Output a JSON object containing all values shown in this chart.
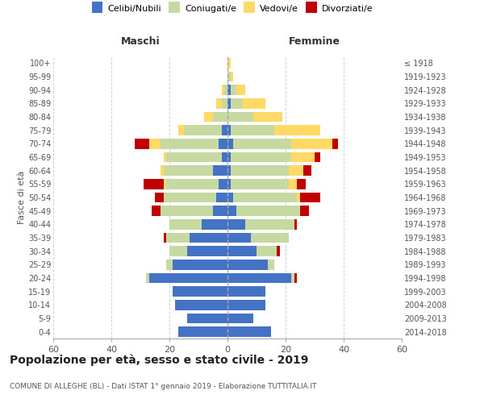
{
  "age_groups": [
    "0-4",
    "5-9",
    "10-14",
    "15-19",
    "20-24",
    "25-29",
    "30-34",
    "35-39",
    "40-44",
    "45-49",
    "50-54",
    "55-59",
    "60-64",
    "65-69",
    "70-74",
    "75-79",
    "80-84",
    "85-89",
    "90-94",
    "95-99",
    "100+"
  ],
  "birth_years": [
    "2014-2018",
    "2009-2013",
    "2004-2008",
    "1999-2003",
    "1994-1998",
    "1989-1993",
    "1984-1988",
    "1979-1983",
    "1974-1978",
    "1969-1973",
    "1964-1968",
    "1959-1963",
    "1954-1958",
    "1949-1953",
    "1944-1948",
    "1939-1943",
    "1934-1938",
    "1929-1933",
    "1924-1928",
    "1919-1923",
    "≤ 1918"
  ],
  "male": {
    "celibe": [
      17,
      14,
      18,
      19,
      27,
      19,
      14,
      13,
      9,
      5,
      4,
      3,
      5,
      2,
      3,
      2,
      0,
      0,
      0,
      0,
      0
    ],
    "coniugato": [
      0,
      0,
      0,
      0,
      1,
      2,
      6,
      8,
      11,
      18,
      18,
      18,
      17,
      19,
      20,
      13,
      5,
      2,
      1,
      0,
      0
    ],
    "vedovo": [
      0,
      0,
      0,
      0,
      0,
      0,
      0,
      0,
      0,
      0,
      0,
      1,
      1,
      1,
      4,
      2,
      3,
      2,
      1,
      0,
      0
    ],
    "divorziato": [
      0,
      0,
      0,
      0,
      0,
      0,
      0,
      1,
      0,
      3,
      3,
      7,
      0,
      0,
      5,
      0,
      0,
      0,
      0,
      0,
      0
    ]
  },
  "female": {
    "nubile": [
      15,
      9,
      13,
      13,
      22,
      14,
      10,
      8,
      6,
      3,
      2,
      1,
      1,
      1,
      2,
      1,
      0,
      1,
      1,
      0,
      0
    ],
    "coniugata": [
      0,
      0,
      0,
      0,
      1,
      2,
      7,
      13,
      17,
      22,
      22,
      20,
      20,
      21,
      20,
      15,
      9,
      4,
      2,
      1,
      0
    ],
    "vedova": [
      0,
      0,
      0,
      0,
      0,
      0,
      0,
      0,
      0,
      0,
      1,
      3,
      5,
      8,
      14,
      16,
      10,
      8,
      3,
      1,
      1
    ],
    "divorziata": [
      0,
      0,
      0,
      0,
      1,
      0,
      1,
      0,
      1,
      3,
      7,
      3,
      3,
      2,
      2,
      0,
      0,
      0,
      0,
      0,
      0
    ]
  },
  "colors": {
    "celibe": "#4472c4",
    "coniugato": "#c5d9a0",
    "vedovo": "#ffd966",
    "divorziato": "#c00000"
  },
  "title": "Popolazione per età, sesso e stato civile - 2019",
  "subtitle": "COMUNE DI ALLEGHE (BL) - Dati ISTAT 1° gennaio 2019 - Elaborazione TUTTITALIA.IT",
  "xlabel_left": "Maschi",
  "xlabel_right": "Femmine",
  "ylabel_left": "Fasce di età",
  "xlim": 60,
  "legend_labels": [
    "Celibi/Nubili",
    "Coniugati/e",
    "Vedovi/e",
    "Divorziati/e"
  ],
  "background_color": "#ffffff",
  "grid_color": "#cccccc",
  "text_color": "#555555"
}
